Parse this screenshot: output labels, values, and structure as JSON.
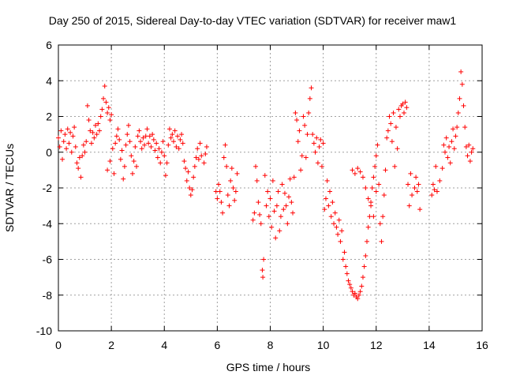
{
  "chart_data": {
    "type": "scatter",
    "title": "Day 250 of 2015, Sidereal Day-to-day VTEC variation (SDTVAR) for receiver maw1",
    "xlabel": "GPS time / hours",
    "ylabel": "SDTVAR / TECUs",
    "xlim": [
      0,
      16
    ],
    "ylim": [
      -10,
      6
    ],
    "xticks": [
      0,
      2,
      4,
      6,
      8,
      10,
      12,
      14,
      16
    ],
    "yticks": [
      -10,
      -8,
      -6,
      -4,
      -2,
      0,
      2,
      4,
      6
    ],
    "grid": true,
    "marker": "+",
    "color": "#ff0000",
    "series": [
      {
        "name": "SDTVAR",
        "points": [
          [
            0.0,
            0.8
          ],
          [
            0.05,
            0.3
          ],
          [
            0.1,
            1.2
          ],
          [
            0.15,
            -0.4
          ],
          [
            0.2,
            0.6
          ],
          [
            0.25,
            1.0
          ],
          [
            0.3,
            0.2
          ],
          [
            0.35,
            1.3
          ],
          [
            0.4,
            0.5
          ],
          [
            0.45,
            1.1
          ],
          [
            0.5,
            0.0
          ],
          [
            0.55,
            0.9
          ],
          [
            0.6,
            1.4
          ],
          [
            0.65,
            0.3
          ],
          [
            0.7,
            -0.6
          ],
          [
            0.75,
            -0.9
          ],
          [
            0.8,
            -0.3
          ],
          [
            0.85,
            -1.4
          ],
          [
            0.9,
            -0.2
          ],
          [
            0.95,
            0.4
          ],
          [
            1.0,
            0.0
          ],
          [
            1.05,
            0.6
          ],
          [
            1.1,
            2.6
          ],
          [
            1.15,
            1.8
          ],
          [
            1.2,
            1.2
          ],
          [
            1.25,
            0.5
          ],
          [
            1.3,
            1.1
          ],
          [
            1.35,
            0.8
          ],
          [
            1.4,
            1.5
          ],
          [
            1.45,
            1.0
          ],
          [
            1.5,
            1.6
          ],
          [
            1.55,
            1.2
          ],
          [
            1.6,
            2.0
          ],
          [
            1.65,
            2.4
          ],
          [
            1.7,
            3.0
          ],
          [
            1.75,
            3.7
          ],
          [
            1.8,
            2.8
          ],
          [
            1.85,
            2.2
          ],
          [
            1.9,
            2.5
          ],
          [
            1.95,
            1.8
          ],
          [
            2.0,
            2.1
          ],
          [
            1.85,
            -1.0
          ],
          [
            1.95,
            -0.5
          ],
          [
            2.05,
            0.2
          ],
          [
            2.1,
            -1.2
          ],
          [
            2.15,
            0.5
          ],
          [
            2.2,
            0.9
          ],
          [
            2.25,
            1.3
          ],
          [
            2.3,
            0.7
          ],
          [
            2.35,
            -0.4
          ],
          [
            2.4,
            0.1
          ],
          [
            2.45,
            -1.5
          ],
          [
            2.5,
            -0.8
          ],
          [
            2.55,
            0.4
          ],
          [
            2.6,
            1.0
          ],
          [
            2.65,
            1.5
          ],
          [
            2.7,
            0.6
          ],
          [
            2.75,
            -0.2
          ],
          [
            2.8,
            -1.2
          ],
          [
            2.85,
            -0.5
          ],
          [
            2.9,
            0.3
          ],
          [
            2.95,
            -0.8
          ],
          [
            3.0,
            0.9
          ],
          [
            3.05,
            1.2
          ],
          [
            3.1,
            0.6
          ],
          [
            3.15,
            0.2
          ],
          [
            3.2,
            0.8
          ],
          [
            3.25,
            0.4
          ],
          [
            3.3,
            0.9
          ],
          [
            3.35,
            1.3
          ],
          [
            3.4,
            0.5
          ],
          [
            3.45,
            0.9
          ],
          [
            3.5,
            0.3
          ],
          [
            3.55,
            1.0
          ],
          [
            3.6,
            0.7
          ],
          [
            3.65,
            0.1
          ],
          [
            3.7,
            0.5
          ],
          [
            3.75,
            -0.3
          ],
          [
            3.8,
            0.2
          ],
          [
            3.85,
            -0.6
          ],
          [
            3.9,
            0.0
          ],
          [
            3.95,
            0.6
          ],
          [
            4.0,
            -0.2
          ],
          [
            4.05,
            -1.3
          ],
          [
            4.1,
            -0.6
          ],
          [
            4.15,
            0.4
          ],
          [
            4.2,
            1.3
          ],
          [
            4.25,
            0.8
          ],
          [
            4.3,
            1.0
          ],
          [
            4.35,
            0.6
          ],
          [
            4.4,
            1.2
          ],
          [
            4.45,
            0.3
          ],
          [
            4.5,
            0.9
          ],
          [
            4.55,
            0.2
          ],
          [
            4.6,
            0.7
          ],
          [
            4.65,
            1.0
          ],
          [
            4.7,
            0.5
          ],
          [
            4.75,
            -0.5
          ],
          [
            4.8,
            -0.9
          ],
          [
            4.85,
            -1.6
          ],
          [
            4.9,
            -1.1
          ],
          [
            4.95,
            -2.0
          ],
          [
            5.0,
            -2.4
          ],
          [
            5.05,
            -2.1
          ],
          [
            5.1,
            -1.4
          ],
          [
            5.15,
            -0.8
          ],
          [
            5.2,
            -0.3
          ],
          [
            5.25,
            0.2
          ],
          [
            5.3,
            -0.4
          ],
          [
            5.35,
            0.5
          ],
          [
            5.4,
            -0.2
          ],
          [
            5.5,
            -0.6
          ],
          [
            5.55,
            -0.1
          ],
          [
            5.6,
            0.3
          ],
          [
            5.95,
            -2.2
          ],
          [
            6.0,
            -2.6
          ],
          [
            6.05,
            -1.8
          ],
          [
            6.1,
            -2.2
          ],
          [
            6.15,
            -2.8
          ],
          [
            6.2,
            -3.4
          ],
          [
            6.25,
            -0.3
          ],
          [
            6.3,
            0.4
          ],
          [
            6.35,
            -0.8
          ],
          [
            6.4,
            -2.4
          ],
          [
            6.45,
            -3.0
          ],
          [
            6.5,
            -1.6
          ],
          [
            6.55,
            -0.9
          ],
          [
            6.6,
            -2.0
          ],
          [
            6.65,
            -2.7
          ],
          [
            6.7,
            -2.2
          ],
          [
            6.75,
            -1.2
          ],
          [
            7.35,
            -3.8
          ],
          [
            7.4,
            -3.4
          ],
          [
            7.45,
            -0.8
          ],
          [
            7.5,
            -1.6
          ],
          [
            7.55,
            -2.8
          ],
          [
            7.6,
            -3.5
          ],
          [
            7.65,
            -4.0
          ],
          [
            7.7,
            -6.6
          ],
          [
            7.72,
            -7.0
          ],
          [
            7.75,
            -6.0
          ],
          [
            7.8,
            -1.3
          ],
          [
            7.85,
            -3.0
          ],
          [
            7.9,
            -2.2
          ],
          [
            7.95,
            -3.6
          ],
          [
            8.0,
            -2.6
          ],
          [
            8.05,
            -4.2
          ],
          [
            8.1,
            -1.6
          ],
          [
            8.15,
            -3.3
          ],
          [
            8.2,
            -4.8
          ],
          [
            8.25,
            -3.0
          ],
          [
            8.3,
            -2.2
          ],
          [
            8.35,
            -4.4
          ],
          [
            8.4,
            -3.6
          ],
          [
            8.45,
            -1.8
          ],
          [
            8.5,
            -3.2
          ],
          [
            8.55,
            -2.3
          ],
          [
            8.6,
            -3.0
          ],
          [
            8.65,
            -4.0
          ],
          [
            8.7,
            -2.5
          ],
          [
            8.75,
            -1.5
          ],
          [
            8.8,
            -2.8
          ],
          [
            8.85,
            -3.4
          ],
          [
            8.9,
            -1.4
          ],
          [
            8.95,
            2.2
          ],
          [
            9.0,
            1.8
          ],
          [
            9.05,
            0.6
          ],
          [
            9.1,
            1.2
          ],
          [
            9.15,
            -1.0
          ],
          [
            9.2,
            -0.2
          ],
          [
            9.25,
            2.0
          ],
          [
            9.3,
            1.5
          ],
          [
            9.35,
            -0.3
          ],
          [
            9.4,
            1.0
          ],
          [
            9.45,
            2.2
          ],
          [
            9.5,
            3.0
          ],
          [
            9.55,
            3.6
          ],
          [
            9.6,
            1.0
          ],
          [
            9.65,
            0.5
          ],
          [
            9.7,
            0.0
          ],
          [
            9.75,
            0.8
          ],
          [
            9.8,
            -0.6
          ],
          [
            9.85,
            0.3
          ],
          [
            9.9,
            0.7
          ],
          [
            9.95,
            -0.8
          ],
          [
            10.0,
            0.5
          ],
          [
            10.05,
            -3.2
          ],
          [
            10.1,
            -2.6
          ],
          [
            10.15,
            -1.6
          ],
          [
            10.2,
            -3.0
          ],
          [
            10.25,
            -2.2
          ],
          [
            10.3,
            -3.6
          ],
          [
            10.35,
            -2.8
          ],
          [
            10.4,
            -4.0
          ],
          [
            10.45,
            -3.4
          ],
          [
            10.5,
            -4.2
          ],
          [
            10.55,
            -4.6
          ],
          [
            10.6,
            -3.8
          ],
          [
            10.65,
            -5.0
          ],
          [
            10.7,
            -4.4
          ],
          [
            10.75,
            -6.0
          ],
          [
            10.8,
            -5.6
          ],
          [
            10.85,
            -6.4
          ],
          [
            10.9,
            -6.8
          ],
          [
            10.95,
            -7.2
          ],
          [
            11.0,
            -7.4
          ],
          [
            11.05,
            -7.6
          ],
          [
            11.1,
            -7.8
          ],
          [
            11.15,
            -8.0
          ],
          [
            11.2,
            -7.9
          ],
          [
            11.25,
            -8.1
          ],
          [
            11.3,
            -8.2
          ],
          [
            11.35,
            -8.0
          ],
          [
            11.4,
            -7.8
          ],
          [
            11.45,
            -7.5
          ],
          [
            11.5,
            -7.0
          ],
          [
            11.55,
            -6.4
          ],
          [
            11.6,
            -5.8
          ],
          [
            11.65,
            -5.0
          ],
          [
            11.7,
            -4.2
          ],
          [
            11.75,
            -3.6
          ],
          [
            11.8,
            -2.8
          ],
          [
            11.85,
            -2.0
          ],
          [
            11.9,
            -1.4
          ],
          [
            11.95,
            -0.8
          ],
          [
            12.0,
            -0.2
          ],
          [
            12.05,
            0.4
          ],
          [
            11.1,
            -1.0
          ],
          [
            11.2,
            -1.2
          ],
          [
            11.3,
            -0.9
          ],
          [
            11.4,
            -1.1
          ],
          [
            11.5,
            -1.4
          ],
          [
            11.6,
            -2.0
          ],
          [
            11.7,
            -2.6
          ],
          [
            11.8,
            -3.0
          ],
          [
            11.9,
            -3.6
          ],
          [
            12.0,
            -2.2
          ],
          [
            12.1,
            -1.8
          ],
          [
            12.15,
            -4.0
          ],
          [
            12.2,
            -5.0
          ],
          [
            12.25,
            -3.6
          ],
          [
            12.3,
            -2.4
          ],
          [
            12.35,
            -1.0
          ],
          [
            12.4,
            0.8
          ],
          [
            12.45,
            1.2
          ],
          [
            12.5,
            2.0
          ],
          [
            12.55,
            1.6
          ],
          [
            12.6,
            0.6
          ],
          [
            12.65,
            2.2
          ],
          [
            12.7,
            -0.8
          ],
          [
            12.75,
            1.4
          ],
          [
            12.8,
            0.2
          ],
          [
            12.85,
            2.4
          ],
          [
            12.9,
            2.0
          ],
          [
            12.95,
            2.6
          ],
          [
            13.0,
            2.7
          ],
          [
            13.05,
            2.2
          ],
          [
            13.1,
            2.8
          ],
          [
            13.15,
            2.5
          ],
          [
            13.2,
            -1.8
          ],
          [
            13.25,
            -3.0
          ],
          [
            13.3,
            -1.2
          ],
          [
            13.35,
            -2.4
          ],
          [
            13.45,
            -2.0
          ],
          [
            13.5,
            -1.4
          ],
          [
            13.55,
            -2.2
          ],
          [
            13.6,
            -1.8
          ],
          [
            13.65,
            -3.2
          ],
          [
            14.1,
            -2.4
          ],
          [
            14.15,
            -1.8
          ],
          [
            14.2,
            -2.1
          ],
          [
            14.25,
            -0.8
          ],
          [
            14.3,
            -2.2
          ],
          [
            14.4,
            -1.6
          ],
          [
            14.5,
            -0.9
          ],
          [
            14.55,
            0.4
          ],
          [
            14.6,
            0.0
          ],
          [
            14.65,
            0.8
          ],
          [
            14.7,
            -0.3
          ],
          [
            14.75,
            0.3
          ],
          [
            14.8,
            -0.6
          ],
          [
            14.85,
            0.6
          ],
          [
            14.9,
            1.3
          ],
          [
            14.95,
            0.2
          ],
          [
            15.0,
            0.9
          ],
          [
            15.05,
            1.4
          ],
          [
            15.1,
            2.2
          ],
          [
            15.15,
            3.0
          ],
          [
            15.2,
            4.5
          ],
          [
            15.25,
            3.8
          ],
          [
            15.3,
            2.6
          ],
          [
            15.35,
            1.4
          ],
          [
            15.4,
            0.3
          ],
          [
            15.45,
            -0.2
          ],
          [
            15.5,
            0.4
          ],
          [
            15.55,
            -0.5
          ],
          [
            15.6,
            0.0
          ],
          [
            15.65,
            0.2
          ]
        ]
      }
    ]
  }
}
